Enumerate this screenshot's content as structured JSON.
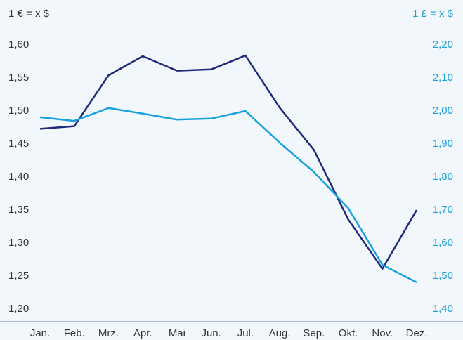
{
  "chart_data": {
    "type": "line",
    "y_label": "1 € = x $",
    "y2_label": "1 £ = x $",
    "categories": [
      "Jan.",
      "Feb.",
      "Mrz.",
      "Apr.",
      "Mai",
      "Jun.",
      "Jul.",
      "Aug.",
      "Sep.",
      "Okt.",
      "Nov.",
      "Dez."
    ],
    "series": [
      {
        "name": "1 € = x $",
        "color": "#1f2a78",
        "values": [
          1.473,
          1.477,
          1.554,
          1.583,
          1.561,
          1.563,
          1.584,
          1.505,
          1.441,
          1.336,
          1.261,
          1.35
        ]
      },
      {
        "name": "1 £ = x $",
        "color": "#1aa0dc",
        "axis": "y2",
        "values": [
          1.981,
          1.97,
          2.009,
          1.992,
          1.974,
          1.977,
          2.0,
          1.904,
          1.815,
          1.706,
          1.534,
          1.481
        ]
      }
    ],
    "ylim": [
      1.2,
      1.6
    ],
    "yticks": [
      {
        "value": 1.2,
        "label": "1,20"
      },
      {
        "value": 1.25,
        "label": "1,25"
      },
      {
        "value": 1.3,
        "label": "1,30"
      },
      {
        "value": 1.35,
        "label": "1,35"
      },
      {
        "value": 1.4,
        "label": "1,40"
      },
      {
        "value": 1.45,
        "label": "1,45"
      },
      {
        "value": 1.5,
        "label": "1,50"
      },
      {
        "value": 1.55,
        "label": "1,55"
      },
      {
        "value": 1.6,
        "label": "1,60"
      }
    ],
    "y2lim": [
      1.4,
      2.2
    ],
    "y2ticks": [
      {
        "value": 1.4,
        "label": "1,40"
      },
      {
        "value": 1.5,
        "label": "1,50"
      },
      {
        "value": 1.6,
        "label": "1,60"
      },
      {
        "value": 1.7,
        "label": "1,70"
      },
      {
        "value": 1.8,
        "label": "1,80"
      },
      {
        "value": 1.9,
        "label": "1,90"
      },
      {
        "value": 2.0,
        "label": "2,00"
      },
      {
        "value": 2.1,
        "label": "2,10"
      },
      {
        "value": 2.2,
        "label": "2,20"
      }
    ],
    "grid": false
  }
}
